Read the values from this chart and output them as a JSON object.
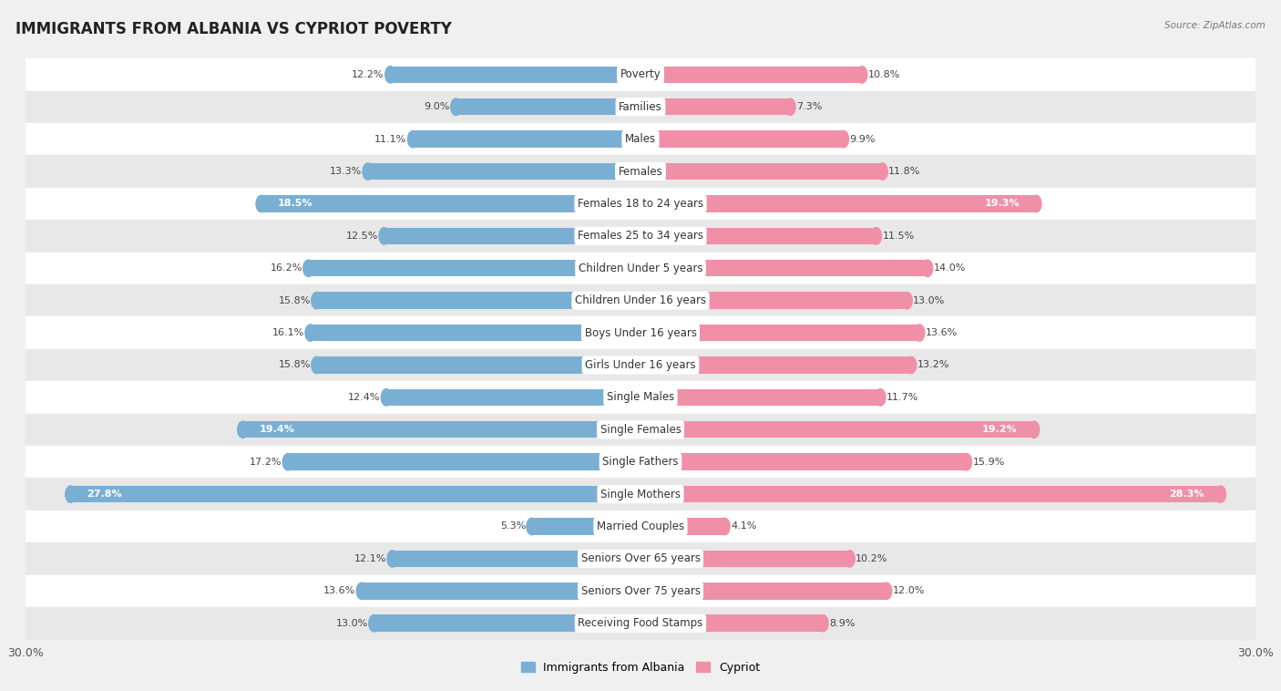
{
  "title": "IMMIGRANTS FROM ALBANIA VS CYPRIOT POVERTY",
  "source": "Source: ZipAtlas.com",
  "categories": [
    "Poverty",
    "Families",
    "Males",
    "Females",
    "Females 18 to 24 years",
    "Females 25 to 34 years",
    "Children Under 5 years",
    "Children Under 16 years",
    "Boys Under 16 years",
    "Girls Under 16 years",
    "Single Males",
    "Single Females",
    "Single Fathers",
    "Single Mothers",
    "Married Couples",
    "Seniors Over 65 years",
    "Seniors Over 75 years",
    "Receiving Food Stamps"
  ],
  "left_values": [
    12.2,
    9.0,
    11.1,
    13.3,
    18.5,
    12.5,
    16.2,
    15.8,
    16.1,
    15.8,
    12.4,
    19.4,
    17.2,
    27.8,
    5.3,
    12.1,
    13.6,
    13.0
  ],
  "right_values": [
    10.8,
    7.3,
    9.9,
    11.8,
    19.3,
    11.5,
    14.0,
    13.0,
    13.6,
    13.2,
    11.7,
    19.2,
    15.9,
    28.3,
    4.1,
    10.2,
    12.0,
    8.9
  ],
  "left_color": "#7aafd4",
  "right_color": "#f090a8",
  "left_label": "Immigrants from Albania",
  "right_label": "Cypriot",
  "background_color": "#f0f0f0",
  "axis_max": 30.0,
  "title_fontsize": 12,
  "label_fontsize": 8.5,
  "value_fontsize": 8,
  "bar_height": 0.52
}
